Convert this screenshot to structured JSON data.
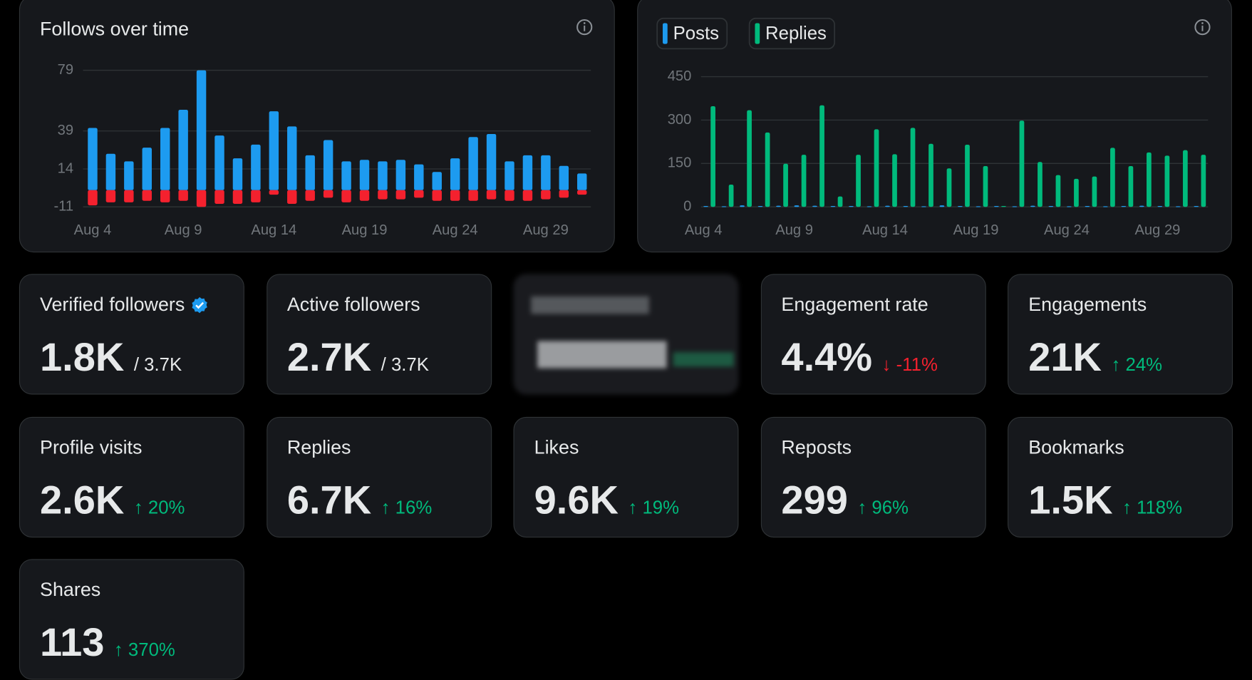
{
  "chart_data": [
    {
      "type": "bar",
      "title": "Follows over time",
      "categories": [
        "Aug 4",
        null,
        null,
        null,
        null,
        "Aug 9",
        null,
        null,
        null,
        null,
        "Aug 14",
        null,
        null,
        null,
        null,
        "Aug 19",
        null,
        null,
        null,
        null,
        "Aug 24",
        null,
        null,
        null,
        null,
        "Aug 29",
        null,
        null
      ],
      "series": [
        {
          "color": "#1d9bf0",
          "values": [
            41,
            24,
            19,
            28,
            41,
            53,
            79,
            36,
            21,
            30,
            52,
            42,
            23,
            33,
            19,
            20,
            19,
            20,
            17,
            12,
            21,
            35,
            37,
            19,
            23,
            23,
            16,
            11
          ]
        },
        {
          "color": "#f4212e",
          "values": [
            -10,
            -8,
            -8,
            -7,
            -8,
            -7,
            -11,
            -9,
            -9,
            -8,
            -3,
            -9,
            -7,
            -5,
            -8,
            -7,
            -6,
            -6,
            -5,
            -7,
            -7,
            -7,
            -6,
            -7,
            -7,
            -6,
            -5,
            -3
          ]
        }
      ],
      "ylim": [
        -11,
        79
      ],
      "yticks": [
        79,
        39,
        14,
        -11
      ],
      "grid": true
    },
    {
      "type": "bar",
      "categories": [
        "Aug 4",
        null,
        null,
        null,
        null,
        "Aug 9",
        null,
        null,
        null,
        null,
        "Aug 14",
        null,
        null,
        null,
        null,
        "Aug 19",
        null,
        null,
        null,
        null,
        "Aug 24",
        null,
        null,
        null,
        null,
        "Aug 29",
        null,
        null
      ],
      "series": [
        {
          "name": "Posts",
          "color": "#1d9bf0",
          "values": [
            3,
            2,
            5,
            3,
            4,
            5,
            4,
            3,
            3,
            2,
            4,
            3,
            2,
            5,
            3,
            2,
            3,
            2,
            4,
            3,
            2,
            3,
            2,
            3,
            4,
            3,
            2,
            3
          ]
        },
        {
          "name": "Replies",
          "color": "#00ba7c",
          "values": [
            348,
            77,
            334,
            257,
            149,
            180,
            351,
            36,
            180,
            268,
            182,
            273,
            218,
            133,
            215,
            141,
            3,
            298,
            155,
            110,
            97,
            105,
            204,
            141,
            188,
            177,
            196,
            180
          ]
        }
      ],
      "ylim": [
        0,
        450
      ],
      "yticks": [
        0,
        150,
        300,
        450
      ],
      "grid": true
    }
  ],
  "cards": [
    {
      "label": "Verified followers",
      "value": "1.8K",
      "total": "/ 3.7K",
      "verified": true
    },
    {
      "label": "Active followers",
      "value": "2.7K",
      "total": "/ 3.7K"
    },
    {
      "blurred": true
    },
    {
      "label": "Engagement rate",
      "value": "4.4%",
      "change": "↓ -11%",
      "change_color": "#f4212e"
    },
    {
      "label": "Engagements",
      "value": "21K",
      "change": "↑ 24%",
      "change_color": "#00ba7c"
    },
    {
      "label": "Profile visits",
      "value": "2.6K",
      "change": "↑ 20%",
      "change_color": "#00ba7c"
    },
    {
      "label": "Replies",
      "value": "6.7K",
      "change": "↑ 16%",
      "change_color": "#00ba7c"
    },
    {
      "label": "Likes",
      "value": "9.6K",
      "change": "↑ 19%",
      "change_color": "#00ba7c"
    },
    {
      "label": "Reposts",
      "value": "299",
      "change": "↑ 96%",
      "change_color": "#00ba7c"
    },
    {
      "label": "Bookmarks",
      "value": "1.5K",
      "change": "↑ 118%",
      "change_color": "#00ba7c"
    },
    {
      "label": "Shares",
      "value": "113",
      "change": "↑ 370%",
      "change_color": "#00ba7c"
    }
  ]
}
